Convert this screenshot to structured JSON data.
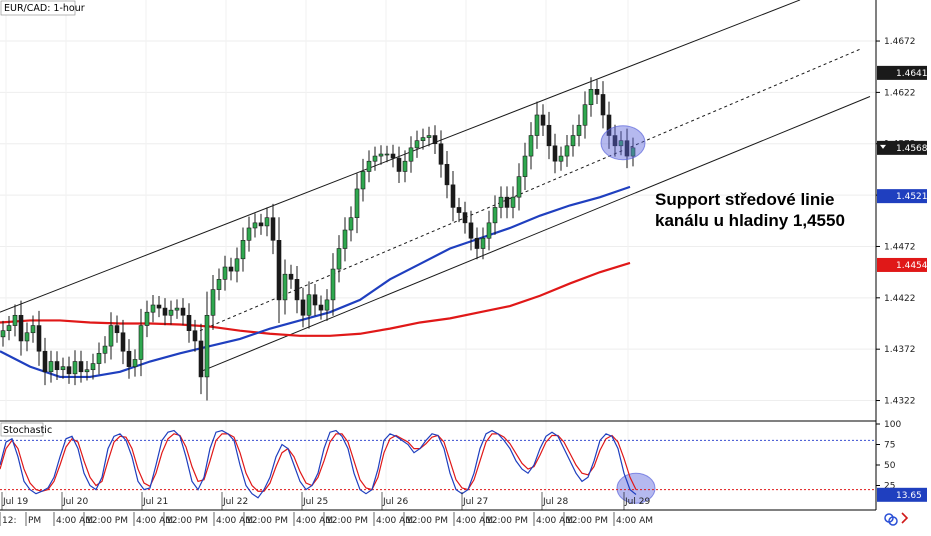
{
  "chart_data": {
    "type": "candlestick",
    "title": "EUR/CAD: 1-hour",
    "annotation": [
      "Support středové linie",
      "kanálu u hladiny 1,4550"
    ],
    "price_axis": {
      "ticks": [
        "1.4672",
        "1.4622",
        "1.4572",
        "1.4522",
        "1.4472",
        "1.4422",
        "1.4372",
        "1.4322"
      ],
      "ylim": [
        1.4305,
        1.471
      ]
    },
    "price_tags": [
      {
        "label": "1.4641",
        "value": 1.4641,
        "bg": "#1a1a1a",
        "fg": "#ffffff"
      },
      {
        "label": "1.4568",
        "value": 1.4568,
        "bg": "#1a1a1a",
        "fg": "#ffffff"
      },
      {
        "label": "1.4521",
        "value": 1.4521,
        "bg": "#1f3fbf",
        "fg": "#ffffff"
      },
      {
        "label": "1.4454",
        "value": 1.4454,
        "bg": "#e01818",
        "fg": "#ffffff"
      }
    ],
    "date_labels": [
      "Jul 19",
      "Jul 20",
      "Jul 21",
      "Jul 22",
      "Jul 25",
      "Jul 26",
      "Jul 27",
      "Jul 28",
      "Jul 29"
    ],
    "time_labels": [
      "12:",
      "PM",
      "4:00 AM",
      "12:00 PM",
      "4:00 AM",
      "12:00 PM",
      "4:00 AM",
      "12:00 PM",
      "4:00 AM",
      "12:00 PM",
      "4:00 AM",
      "12:00 PM",
      "4:00 AM",
      "12:00 PM",
      "4:00 AM",
      "12:00 PM",
      "4:00 AM"
    ],
    "series": [
      {
        "name": "close",
        "x": [
          0,
          6,
          12,
          18,
          24,
          30,
          36,
          42,
          48,
          54,
          60,
          66,
          72,
          78,
          84,
          90,
          96,
          102,
          108,
          114,
          120,
          126,
          132,
          138,
          144,
          150,
          156,
          162,
          168,
          174,
          180,
          186,
          192,
          198,
          204,
          210,
          216,
          222,
          228,
          234,
          240,
          246,
          252,
          258,
          264,
          270,
          276,
          282,
          288,
          294,
          300,
          306,
          312,
          318,
          324,
          330,
          336,
          342,
          348,
          354,
          360,
          366,
          372,
          378,
          384,
          390,
          396,
          402,
          408,
          414,
          420,
          426,
          432,
          438,
          444,
          450,
          456,
          462,
          468,
          474,
          480,
          486,
          492,
          498,
          504,
          510,
          516,
          522,
          528,
          534,
          540,
          546,
          552,
          558,
          564,
          570,
          576,
          582,
          588,
          594,
          600,
          606,
          612,
          618,
          624,
          630
        ],
        "values": [
          1.439,
          1.4395,
          1.4405,
          1.438,
          1.4388,
          1.4395,
          1.437,
          1.435,
          1.436,
          1.4352,
          1.4355,
          1.4348,
          1.436,
          1.435,
          1.4352,
          1.4358,
          1.4368,
          1.4375,
          1.4395,
          1.4388,
          1.437,
          1.4355,
          1.4362,
          1.4395,
          1.4408,
          1.4415,
          1.4412,
          1.4405,
          1.441,
          1.4412,
          1.4405,
          1.439,
          1.438,
          1.4345,
          1.4405,
          1.443,
          1.444,
          1.4452,
          1.4448,
          1.446,
          1.4478,
          1.449,
          1.4495,
          1.4492,
          1.45,
          1.4478,
          1.442,
          1.4445,
          1.444,
          1.442,
          1.4405,
          1.4425,
          1.4415,
          1.441,
          1.442,
          1.445,
          1.447,
          1.4488,
          1.45,
          1.4528,
          1.4545,
          1.4555,
          1.456,
          1.4562,
          1.4562,
          1.4558,
          1.4545,
          1.4555,
          1.4568,
          1.4575,
          1.4578,
          1.458,
          1.4572,
          1.4552,
          1.4532,
          1.451,
          1.4505,
          1.4495,
          1.448,
          1.447,
          1.448,
          1.4495,
          1.451,
          1.452,
          1.451,
          1.452,
          1.454,
          1.456,
          1.458,
          1.46,
          1.459,
          1.457,
          1.4555,
          1.456,
          1.457,
          1.458,
          1.459,
          1.461,
          1.4625,
          1.462,
          1.46,
          1.458,
          1.457,
          1.4575,
          1.456,
          1.4568
        ]
      },
      {
        "name": "MA 100",
        "x": [
          0,
          30,
          60,
          90,
          120,
          150,
          180,
          210,
          240,
          270,
          300,
          330,
          360,
          390,
          420,
          450,
          480,
          510,
          540,
          570,
          600,
          630
        ],
        "values": [
          1.437,
          1.4355,
          1.4345,
          1.4345,
          1.435,
          1.436,
          1.4368,
          1.4375,
          1.4382,
          1.4392,
          1.44,
          1.4408,
          1.442,
          1.444,
          1.4455,
          1.447,
          1.448,
          1.449,
          1.4502,
          1.4512,
          1.452,
          1.453
        ]
      },
      {
        "name": "MA 200",
        "x": [
          0,
          30,
          60,
          90,
          120,
          150,
          180,
          210,
          240,
          270,
          300,
          330,
          360,
          390,
          420,
          450,
          480,
          510,
          540,
          570,
          600,
          630
        ],
        "values": [
          1.4398,
          1.44,
          1.44,
          1.4398,
          1.4397,
          1.4397,
          1.4396,
          1.4394,
          1.439,
          1.4387,
          1.4385,
          1.4385,
          1.4387,
          1.4392,
          1.4398,
          1.4402,
          1.4408,
          1.4414,
          1.4424,
          1.4436,
          1.4447,
          1.4456
        ]
      }
    ],
    "channel": {
      "upper": {
        "from": [
          0,
          1.4408
        ],
        "to": [
          800,
          1.4712
        ]
      },
      "middle": {
        "from": [
          200,
          1.439
        ],
        "to": [
          860,
          1.4664
        ]
      },
      "lower": {
        "from": [
          200,
          1.435
        ],
        "to": [
          870,
          1.4618
        ]
      }
    },
    "highlight_circles": [
      {
        "x": 623,
        "y": 1.4573
      }
    ],
    "stochastic": {
      "label": "Stochastic",
      "ticks": [
        "100",
        "75",
        "50",
        "25"
      ],
      "value_tag": {
        "label": "13.65",
        "value": 13.65
      },
      "levels": [
        80,
        20
      ],
      "k": [
        50,
        78,
        82,
        60,
        30,
        20,
        15,
        18,
        22,
        35,
        60,
        82,
        85,
        70,
        40,
        25,
        20,
        35,
        70,
        85,
        88,
        80,
        60,
        30,
        20,
        22,
        50,
        80,
        90,
        92,
        85,
        60,
        30,
        20,
        35,
        70,
        90,
        92,
        88,
        80,
        50,
        25,
        15,
        10,
        20,
        35,
        60,
        75,
        70,
        50,
        30,
        20,
        25,
        40,
        70,
        90,
        92,
        85,
        70,
        40,
        20,
        15,
        20,
        45,
        80,
        88,
        85,
        80,
        75,
        65,
        70,
        80,
        88,
        86,
        70,
        40,
        20,
        15,
        20,
        40,
        70,
        88,
        92,
        88,
        80,
        70,
        55,
        45,
        40,
        50,
        70,
        85,
        90,
        85,
        70,
        55,
        40,
        30,
        35,
        55,
        80,
        88,
        85,
        70,
        40,
        20,
        14
      ],
      "d": [
        45,
        70,
        80,
        70,
        45,
        28,
        20,
        18,
        20,
        30,
        50,
        72,
        82,
        78,
        55,
        35,
        25,
        30,
        55,
        78,
        85,
        84,
        70,
        45,
        28,
        24,
        40,
        65,
        82,
        88,
        86,
        72,
        48,
        30,
        32,
        55,
        80,
        88,
        88,
        84,
        65,
        40,
        25,
        18,
        18,
        28,
        48,
        65,
        70,
        60,
        42,
        28,
        25,
        35,
        55,
        78,
        88,
        88,
        78,
        55,
        32,
        22,
        20,
        35,
        65,
        82,
        86,
        82,
        78,
        70,
        70,
        76,
        84,
        86,
        78,
        55,
        32,
        22,
        20,
        32,
        55,
        78,
        88,
        88,
        84,
        76,
        64,
        52,
        45,
        48,
        62,
        78,
        86,
        86,
        78,
        64,
        50,
        40,
        38,
        48,
        68,
        82,
        86,
        78,
        58,
        35,
        20
      ]
    }
  }
}
